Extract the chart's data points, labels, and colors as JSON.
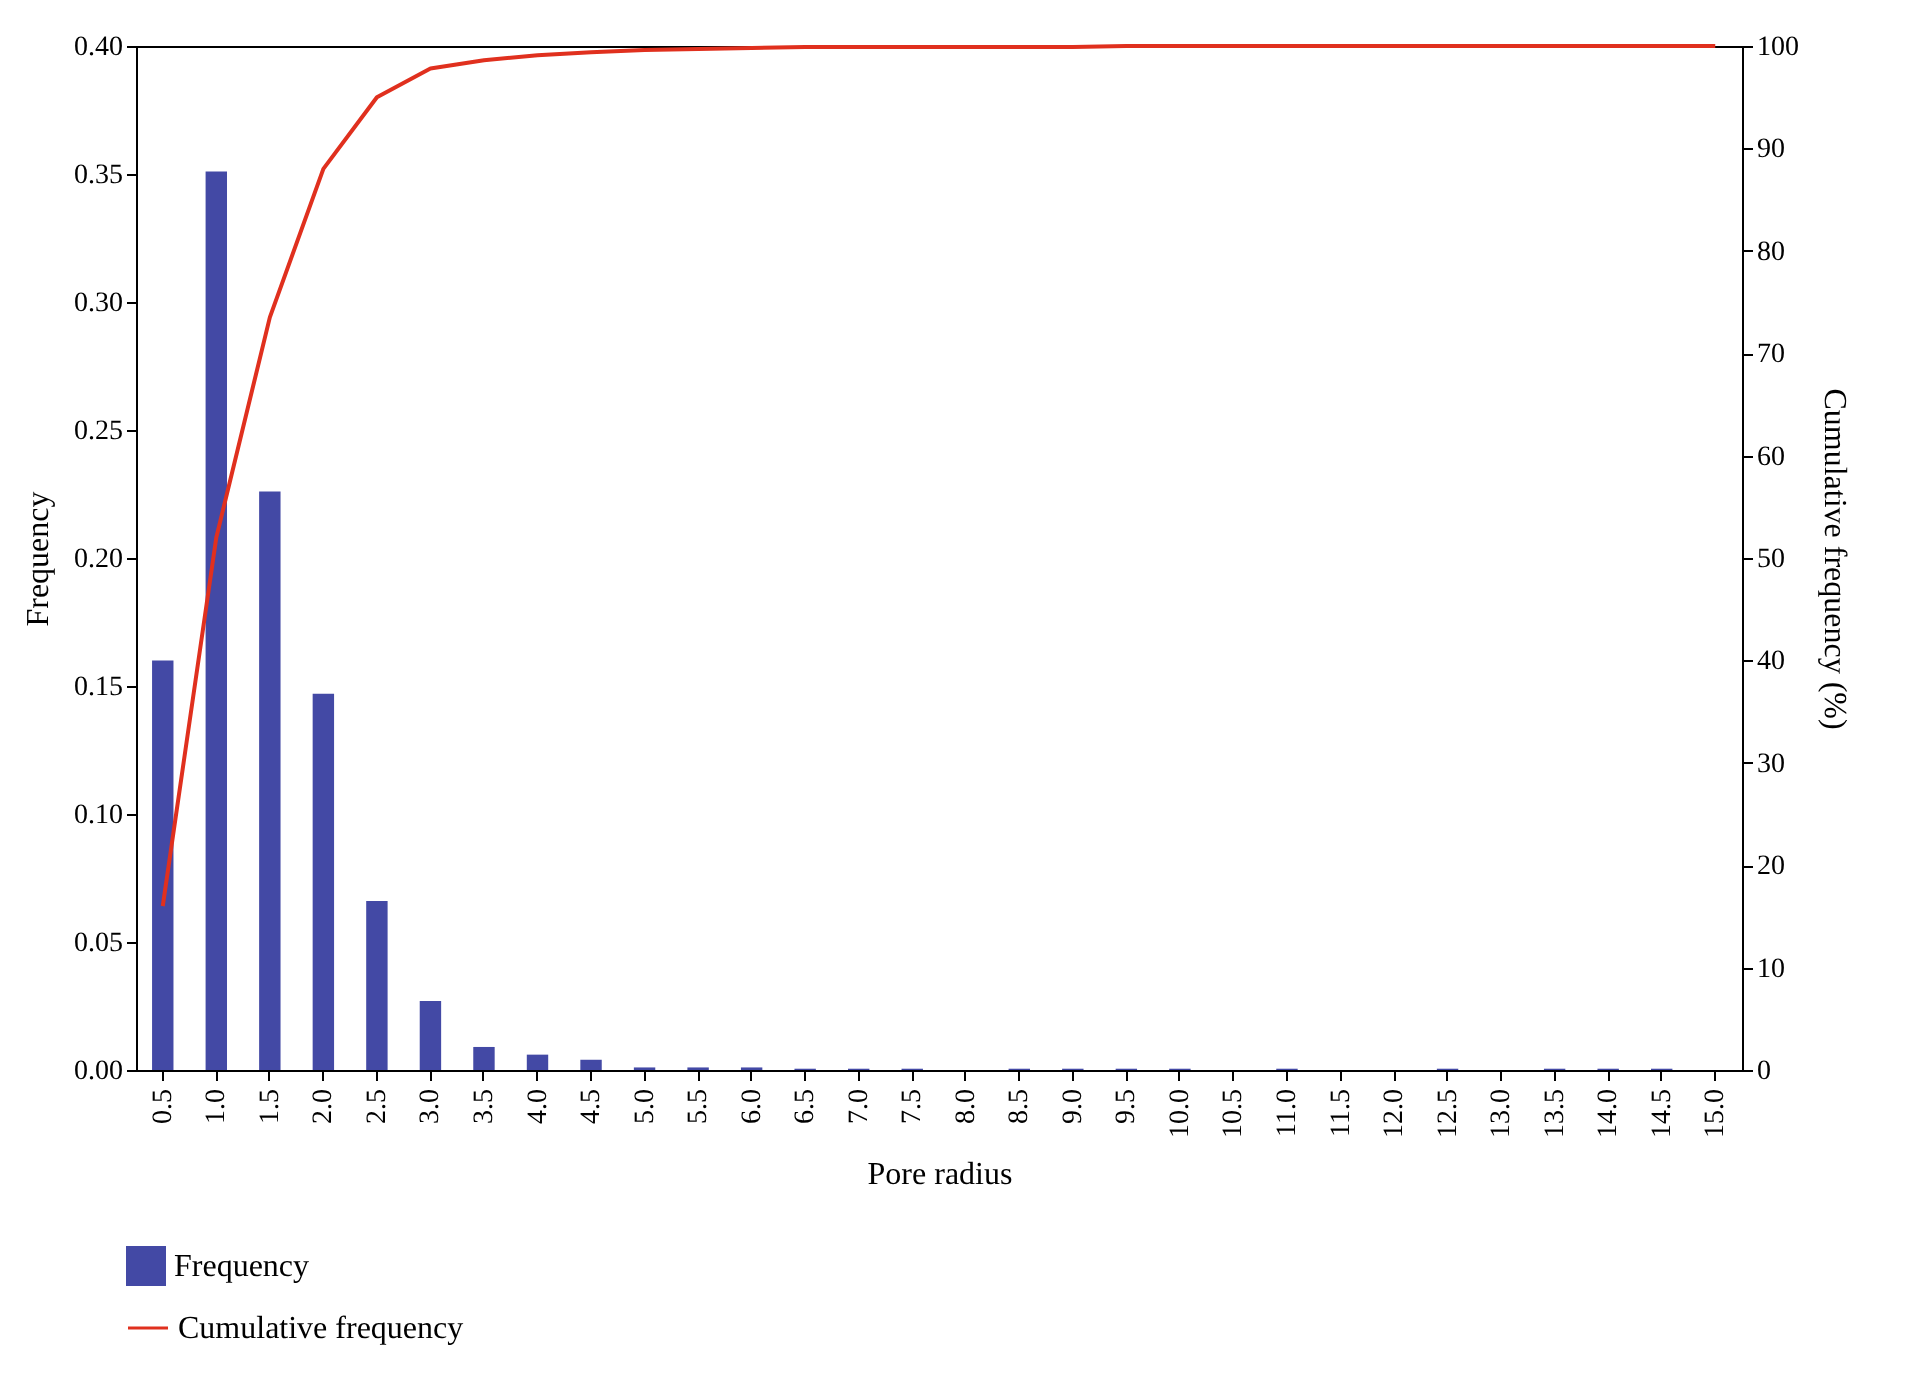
{
  "chart_data": {
    "type": "bar",
    "xlabel": "Pore radius",
    "ylabel": "Frequency",
    "y2label": "Cumulative frequency (%)",
    "categories": [
      "0.5",
      "1.0",
      "1.5",
      "2.0",
      "2.5",
      "3.0",
      "3.5",
      "4.0",
      "4.5",
      "5.0",
      "5.5",
      "6.0",
      "6.5",
      "7.0",
      "7.5",
      "8.0",
      "8.5",
      "9.0",
      "9.5",
      "10.0",
      "10.5",
      "11.0",
      "11.5",
      "12.0",
      "12.5",
      "13.0",
      "13.5",
      "14.0",
      "14.5",
      "15.0"
    ],
    "series": [
      {
        "name": "Frequency",
        "color": "#4349a5",
        "values": [
          0.16,
          0.351,
          0.226,
          0.147,
          0.066,
          0.027,
          0.009,
          0.006,
          0.004,
          0.001,
          0.001,
          0.001,
          0.0005,
          0.0005,
          0.0005,
          0,
          0.0005,
          0.0005,
          0.0005,
          0.0005,
          0,
          0.0005,
          0,
          0,
          0.0005,
          0,
          0.0005,
          0.0005,
          0.0005,
          0
        ]
      },
      {
        "name": "Cumulative frequency",
        "type": "line",
        "axis": "y2",
        "color": "#e0301e",
        "values": [
          16,
          52,
          73.5,
          88,
          95,
          97.8,
          98.6,
          99.1,
          99.4,
          99.6,
          99.7,
          99.8,
          99.9,
          99.9,
          99.9,
          99.9,
          99.9,
          99.9,
          100,
          100,
          100,
          100,
          100,
          100,
          100,
          100,
          100,
          100,
          100,
          100
        ]
      }
    ],
    "ylim": [
      0,
      0.4
    ],
    "yticks": [
      {
        "value": 0,
        "label": "0.00"
      },
      {
        "value": 0.05,
        "label": "0.05"
      },
      {
        "value": 0.1,
        "label": "0.10"
      },
      {
        "value": 0.15,
        "label": "0.15"
      },
      {
        "value": 0.2,
        "label": "0.20"
      },
      {
        "value": 0.25,
        "label": "0.25"
      },
      {
        "value": 0.3,
        "label": "0.30"
      },
      {
        "value": 0.35,
        "label": "0.35"
      },
      {
        "value": 0.4,
        "label": "0.40"
      }
    ],
    "y2lim": [
      0,
      100
    ],
    "y2ticks": [
      0,
      10,
      20,
      30,
      40,
      50,
      60,
      70,
      80,
      90,
      100
    ],
    "grid": false,
    "legend": "bottom left",
    "marker": "none"
  }
}
